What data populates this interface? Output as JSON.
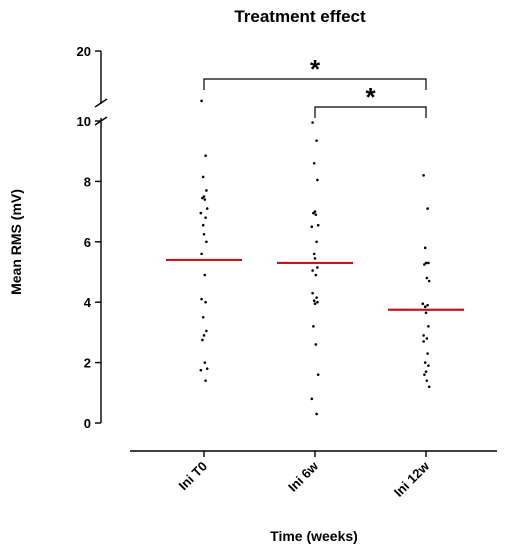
{
  "chart_data": {
    "type": "scatter",
    "title": "Treatment effect",
    "xlabel": "Time (weeks)",
    "ylabel": "Mean RMS (mV)",
    "ylim": [
      0,
      20
    ],
    "axis_break": [
      10,
      20
    ],
    "y_ticks": [
      "0",
      "2",
      "4",
      "6",
      "8",
      "10",
      "20"
    ],
    "y_tick_values": [
      0,
      2,
      4,
      6,
      8,
      10,
      20
    ],
    "categories": [
      "Ini T0",
      "Ini 6w",
      "Ini 12w"
    ],
    "means": [
      5.4,
      5.3,
      3.75
    ],
    "mean_line_color": "#c0181f",
    "point_color": "#000000",
    "series": [
      {
        "values": [
          10.6,
          8.85,
          8.15,
          7.7,
          7.5,
          7.45,
          7.4,
          7.1,
          6.95,
          6.8,
          6.55,
          6.25,
          6.0,
          5.6,
          4.9,
          4.1,
          4.0,
          3.5,
          3.05,
          2.9,
          2.75,
          2.0,
          1.8,
          1.75,
          1.4
        ]
      },
      {
        "values": [
          9.95,
          9.35,
          8.6,
          8.05,
          7.0,
          6.95,
          6.9,
          6.55,
          6.5,
          6.0,
          5.6,
          5.45,
          5.15,
          5.05,
          4.9,
          4.3,
          4.15,
          4.05,
          4.0,
          3.95,
          3.2,
          2.6,
          1.6,
          0.8,
          0.3
        ]
      },
      {
        "values": [
          8.2,
          7.1,
          5.8,
          5.3,
          5.3,
          5.25,
          4.8,
          4.7,
          3.95,
          3.9,
          3.85,
          3.65,
          3.2,
          2.9,
          2.8,
          2.7,
          2.3,
          2.0,
          1.9,
          1.7,
          1.6,
          1.4,
          1.2
        ]
      }
    ],
    "significance": [
      {
        "from": "Ini T0",
        "to": "Ini 12w",
        "label": "*"
      },
      {
        "from": "Ini 6w",
        "to": "Ini 12w",
        "label": "*"
      }
    ]
  }
}
